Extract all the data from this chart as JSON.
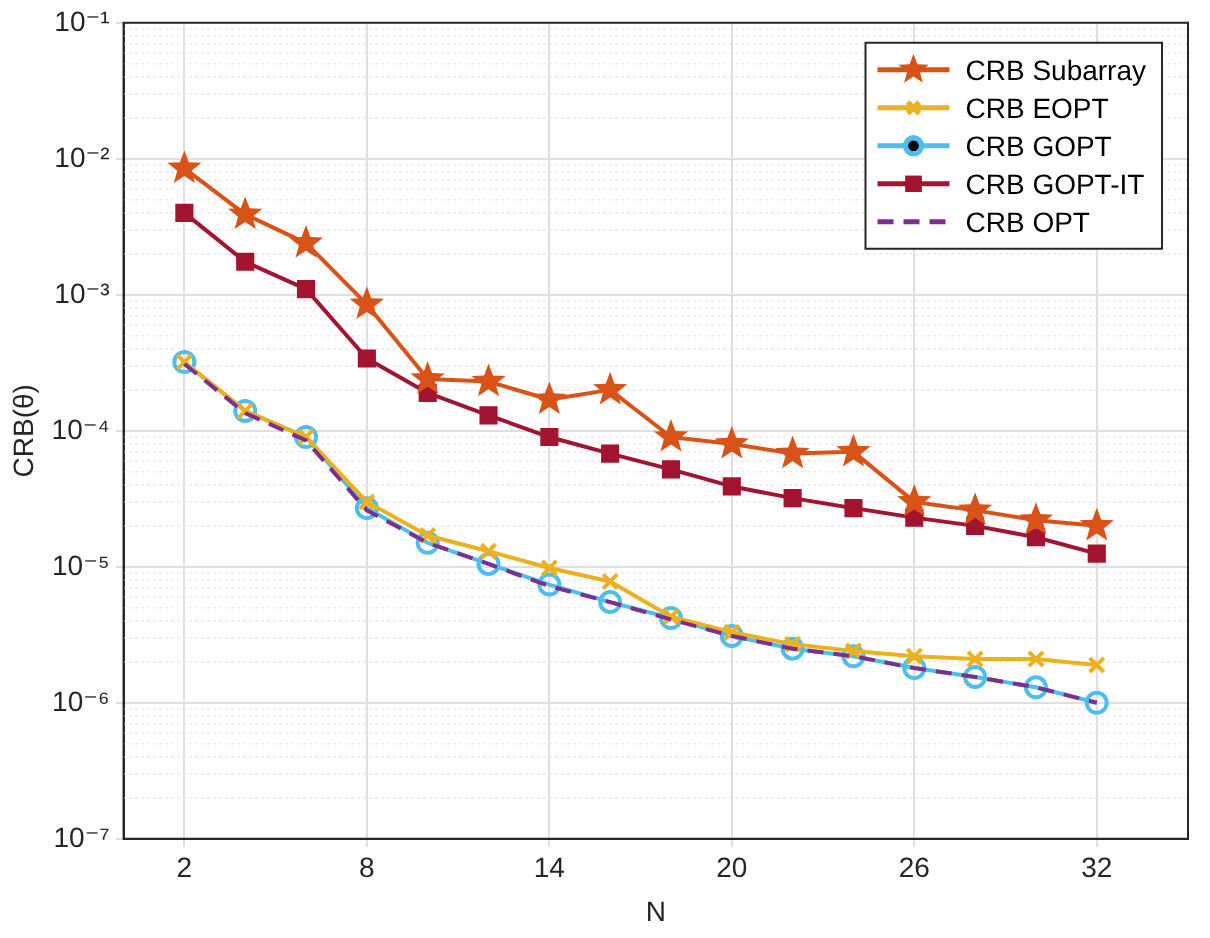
{
  "chart_data": {
    "type": "line",
    "xlabel": "N",
    "ylabel": "CRB(θ)",
    "log": "y",
    "grid": true,
    "legend": "top right",
    "x": [
      2,
      4,
      6,
      8,
      10,
      12,
      14,
      16,
      18,
      20,
      22,
      24,
      26,
      28,
      30,
      32
    ],
    "xlim": [
      0,
      35
    ],
    "xticks": [
      2,
      8,
      14,
      20,
      26,
      32
    ],
    "ylim": [
      1e-07,
      0.1
    ],
    "yticks": [
      {
        "value": 1e-07,
        "label": "10⁻⁷"
      },
      {
        "value": 1e-06,
        "label": "10⁻⁶"
      },
      {
        "value": 1e-05,
        "label": "10⁻⁵"
      },
      {
        "value": 0.0001,
        "label": "10⁻⁴"
      },
      {
        "value": 0.001,
        "label": "10⁻³"
      },
      {
        "value": 0.01,
        "label": "10⁻²"
      },
      {
        "value": 0.1,
        "label": "10⁻¹"
      }
    ],
    "series": [
      {
        "name": "CRB Subarray",
        "color": "#d95319",
        "marker": "star",
        "line_style": "solid",
        "values": [
          0.0085,
          0.0039,
          0.0024,
          0.00085,
          0.00024,
          0.00023,
          0.00017,
          0.0002,
          9e-05,
          8e-05,
          6.8e-05,
          7e-05,
          3e-05,
          2.6e-05,
          2.2e-05,
          2e-05
        ]
      },
      {
        "name": "CRB EOPT",
        "color": "#edb120",
        "marker": "cross",
        "line_style": "solid",
        "values": [
          0.00032,
          0.00014,
          9e-05,
          3e-05,
          1.7e-05,
          1.3e-05,
          9.8e-06,
          7.8e-06,
          4.3e-06,
          3.3e-06,
          2.7e-06,
          2.4e-06,
          2.2e-06,
          2.1e-06,
          2.1e-06,
          1.9e-06
        ]
      },
      {
        "name": "CRB GOPT",
        "color": "#4dbeee",
        "marker": "circle",
        "line_style": "solid",
        "values": [
          0.00032,
          0.00014,
          9e-05,
          2.7e-05,
          1.5e-05,
          1.05e-05,
          7.4e-06,
          5.5e-06,
          4.2e-06,
          3.1e-06,
          2.5e-06,
          2.2e-06,
          1.8e-06,
          1.55e-06,
          1.3e-06,
          1e-06
        ]
      },
      {
        "name": "CRB GOPT-IT",
        "color": "#a2142f",
        "marker": "square",
        "line_style": "solid",
        "values": [
          0.004,
          0.00175,
          0.0011,
          0.00034,
          0.00019,
          0.00013,
          9e-05,
          6.8e-05,
          5.2e-05,
          3.9e-05,
          3.2e-05,
          2.7e-05,
          2.3e-05,
          2e-05,
          1.65e-05,
          1.25e-05
        ]
      },
      {
        "name": "CRB OPT",
        "color": "#7e2f8e",
        "marker": "none",
        "line_style": "dashed",
        "values": [
          0.00031,
          0.000135,
          8.5e-05,
          2.6e-05,
          1.5e-05,
          1.05e-05,
          7.2e-06,
          5.5e-06,
          4.1e-06,
          3.1e-06,
          2.5e-06,
          2.2e-06,
          1.8e-06,
          1.55e-06,
          1.3e-06,
          1e-06
        ]
      }
    ]
  }
}
